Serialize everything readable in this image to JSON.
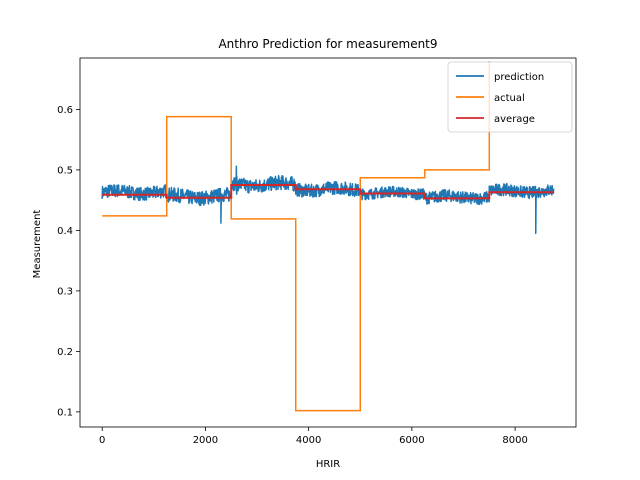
{
  "chart_data": {
    "type": "line",
    "title": "Anthro Prediction for measurement9",
    "xlabel": "HRIR",
    "ylabel": "Measurement",
    "xlim": [
      -430,
      9180
    ],
    "ylim": [
      0.075,
      0.685
    ],
    "xticks": [
      0,
      2000,
      4000,
      6000,
      8000
    ],
    "yticks": [
      0.1,
      0.2,
      0.3,
      0.4,
      0.5,
      0.6
    ],
    "ytick_labels": [
      "0.1",
      "0.2",
      "0.3",
      "0.4",
      "0.5",
      "0.6"
    ],
    "legend_position": "top-right",
    "grid": false,
    "series": [
      {
        "name": "prediction",
        "color": "#1f77b4",
        "style": "noisy",
        "segments": [
          {
            "x": [
              0,
              1250
            ],
            "center": 0.463,
            "spread": 0.011
          },
          {
            "x": [
              1250,
              2500
            ],
            "center": 0.456,
            "spread": 0.012
          },
          {
            "x": [
              2500,
              3750
            ],
            "center": 0.476,
            "spread": 0.012
          },
          {
            "x": [
              3750,
              5000
            ],
            "center": 0.468,
            "spread": 0.011
          },
          {
            "x": [
              5000,
              6250
            ],
            "center": 0.462,
            "spread": 0.009
          },
          {
            "x": [
              6250,
              7500
            ],
            "center": 0.455,
            "spread": 0.01
          },
          {
            "x": [
              7500,
              8750
            ],
            "center": 0.465,
            "spread": 0.01
          }
        ],
        "outliers": [
          {
            "x": 8400,
            "y": 0.395
          },
          {
            "x": 2300,
            "y": 0.412
          },
          {
            "x": 2600,
            "y": 0.506
          }
        ]
      },
      {
        "name": "actual",
        "color": "#ff7f0e",
        "style": "step",
        "x": [
          0,
          1250,
          1250,
          2500,
          2500,
          3750,
          3750,
          5000,
          5000,
          6250,
          6250,
          7500,
          7500
        ],
        "y": [
          0.424,
          0.424,
          0.588,
          0.588,
          0.419,
          0.419,
          0.102,
          0.102,
          0.487,
          0.487,
          0.5,
          0.5,
          0.68
        ]
      },
      {
        "name": "average",
        "color": "#d62728",
        "style": "step",
        "x": [
          0,
          1250,
          1250,
          2500,
          2500,
          3750,
          3750,
          5000,
          5000,
          6250,
          6250,
          7500,
          7500,
          8750
        ],
        "y": [
          0.459,
          0.459,
          0.454,
          0.454,
          0.475,
          0.475,
          0.468,
          0.468,
          0.461,
          0.461,
          0.453,
          0.453,
          0.463,
          0.463
        ]
      }
    ]
  }
}
